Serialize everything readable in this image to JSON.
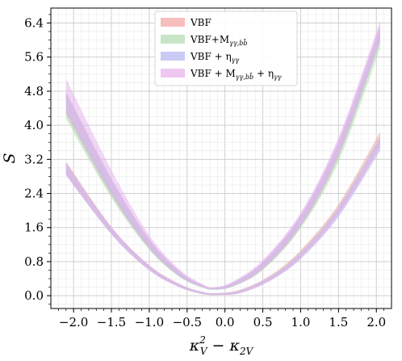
{
  "chart_data": {
    "type": "area",
    "xlabel": "κ_V² − κ_2V",
    "ylabel": "S",
    "xlim": [
      -2.3,
      2.2
    ],
    "ylim": [
      -0.3,
      6.75
    ],
    "x_ticks": [
      -2.0,
      -1.5,
      -1.0,
      -0.5,
      0.0,
      0.5,
      1.0,
      1.5,
      2.0
    ],
    "x_tick_labels": [
      "−2.0",
      "−1.5",
      "−1.0",
      "−0.5",
      "0.0",
      "0.5",
      "1.0",
      "1.5",
      "2.0"
    ],
    "y_ticks": [
      0.0,
      0.8,
      1.6,
      2.4,
      3.2,
      4.0,
      4.8,
      5.6,
      6.4
    ],
    "y_tick_labels": [
      "0.0",
      "0.8",
      "1.6",
      "2.4",
      "3.2",
      "4.0",
      "4.8",
      "5.6",
      "6.4"
    ],
    "grid": true,
    "legend_position": "top-center",
    "series": [
      {
        "name": "VBF",
        "legend_main": "VBF",
        "legend_sub": "",
        "legend_tail": "",
        "color": "#f4a8a8",
        "bands": [
          {
            "x": [
              -2.1,
              -1.5,
              -1.0,
              -0.6,
              -0.3,
              -0.1,
              0.2,
              0.6,
              1.0,
              1.5,
              2.05
            ],
            "lower": [
              2.85,
              1.45,
              0.6,
              0.2,
              0.04,
              0.02,
              0.07,
              0.38,
              0.92,
              1.95,
              3.55
            ],
            "upper": [
              3.15,
              1.62,
              0.72,
              0.28,
              0.09,
              0.06,
              0.14,
              0.48,
              1.07,
              2.15,
              3.85
            ]
          },
          {
            "x": [
              -2.1,
              -1.5,
              -1.0,
              -0.6,
              -0.3,
              -0.15,
              0.1,
              0.5,
              1.0,
              1.5,
              2.05
            ],
            "lower": [
              4.25,
              2.35,
              1.1,
              0.45,
              0.2,
              0.15,
              0.22,
              0.62,
              1.62,
              3.25,
              5.95
            ],
            "upper": [
              4.75,
              2.72,
              1.32,
              0.57,
              0.25,
              0.18,
              0.3,
              0.78,
              1.88,
              3.6,
              6.3
            ]
          }
        ]
      },
      {
        "name": "VBF+Mγγ,bb̄",
        "legend_main": "VBF+M",
        "legend_sub": "γγ,bb̄",
        "legend_tail": "",
        "color": "#b4dcb4",
        "bands": [
          {
            "x": [
              -2.1,
              -1.5,
              -1.0,
              -0.6,
              -0.3,
              -0.1,
              0.2,
              0.6,
              1.0,
              1.5,
              2.05
            ],
            "lower": [
              2.88,
              1.47,
              0.62,
              0.21,
              0.05,
              0.02,
              0.07,
              0.38,
              0.9,
              1.92,
              3.5
            ],
            "upper": [
              3.12,
              1.6,
              0.7,
              0.27,
              0.09,
              0.06,
              0.13,
              0.46,
              1.04,
              2.1,
              3.75
            ]
          },
          {
            "x": [
              -2.1,
              -1.5,
              -1.0,
              -0.6,
              -0.3,
              -0.15,
              0.1,
              0.5,
              1.0,
              1.5,
              2.05
            ],
            "lower": [
              4.15,
              2.3,
              1.08,
              0.44,
              0.19,
              0.14,
              0.21,
              0.6,
              1.58,
              3.15,
              5.8
            ],
            "upper": [
              4.75,
              2.7,
              1.3,
              0.56,
              0.24,
              0.18,
              0.29,
              0.76,
              1.84,
              3.5,
              6.15
            ]
          }
        ]
      },
      {
        "name": "VBF + ηγγ",
        "legend_main": "VBF + η",
        "legend_sub": "γγ",
        "legend_tail": "",
        "color": "#b8b8f0",
        "bands": [
          {
            "x": [
              -2.1,
              -1.5,
              -1.0,
              -0.6,
              -0.3,
              -0.1,
              0.2,
              0.6,
              1.0,
              1.5,
              2.05
            ],
            "lower": [
              2.82,
              1.44,
              0.6,
              0.2,
              0.04,
              0.02,
              0.06,
              0.35,
              0.86,
              1.85,
              3.4
            ],
            "upper": [
              3.1,
              1.6,
              0.71,
              0.27,
              0.09,
              0.06,
              0.12,
              0.44,
              1.0,
              2.05,
              3.7
            ]
          },
          {
            "x": [
              -2.1,
              -1.5,
              -1.0,
              -0.6,
              -0.3,
              -0.15,
              0.1,
              0.5,
              1.0,
              1.5,
              2.05
            ],
            "lower": [
              4.3,
              2.4,
              1.12,
              0.46,
              0.2,
              0.15,
              0.22,
              0.63,
              1.64,
              3.3,
              6.0
            ],
            "upper": [
              4.8,
              2.76,
              1.34,
              0.58,
              0.26,
              0.19,
              0.31,
              0.8,
              1.9,
              3.65,
              6.35
            ]
          }
        ]
      },
      {
        "name": "VBF + Mγγ,bb̄ + ηγγ",
        "legend_main": "VBF + M",
        "legend_sub": "γγ,bb̄",
        "legend_tail": " + η",
        "legend_tail_sub": "γγ",
        "color": "#e8b4ec",
        "bands": [
          {
            "x": [
              -2.1,
              -1.5,
              -1.0,
              -0.6,
              -0.3,
              -0.1,
              0.2,
              0.6,
              1.0,
              1.5,
              2.05
            ],
            "lower": [
              2.84,
              1.45,
              0.6,
              0.2,
              0.04,
              0.02,
              0.06,
              0.36,
              0.88,
              1.88,
              3.45
            ],
            "upper": [
              3.12,
              1.61,
              0.71,
              0.27,
              0.09,
              0.06,
              0.13,
              0.45,
              1.02,
              2.08,
              3.72
            ]
          },
          {
            "x": [
              -2.1,
              -1.5,
              -1.0,
              -0.6,
              -0.3,
              -0.15,
              0.1,
              0.5,
              1.0,
              1.5,
              2.05
            ],
            "lower": [
              4.35,
              2.45,
              1.15,
              0.48,
              0.21,
              0.15,
              0.23,
              0.64,
              1.66,
              3.32,
              6.05
            ],
            "upper": [
              5.1,
              2.95,
              1.42,
              0.62,
              0.28,
              0.2,
              0.33,
              0.84,
              1.95,
              3.72,
              6.45
            ]
          }
        ]
      }
    ]
  }
}
